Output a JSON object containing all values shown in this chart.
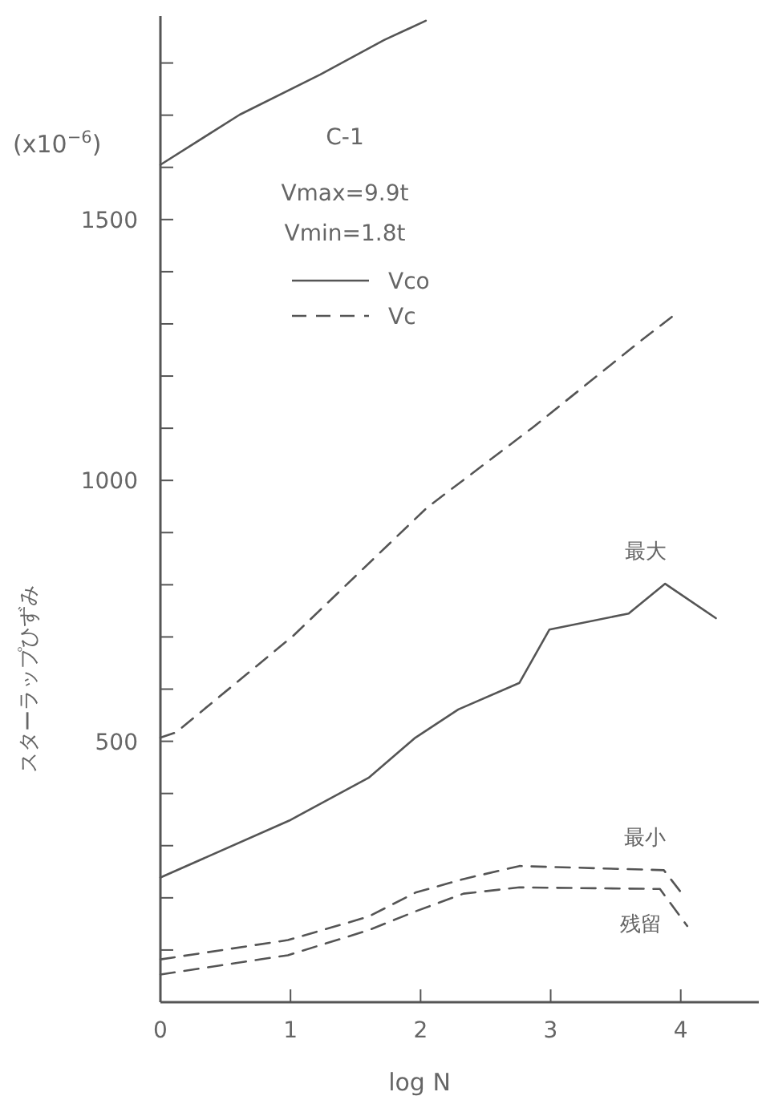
{
  "chart_data": {
    "type": "line",
    "xlabel": "log N",
    "ylabel": "スターラップひずみ",
    "annotations": [
      "(x10$^{−6}$)",
      "C-1",
      "Vmax=9.9t",
      "Vmin=1.8t"
    ],
    "xlim": [
      0,
      4.6
    ],
    "ylim": [
      0,
      1890
    ],
    "xticks": [
      0,
      1,
      2,
      3,
      4
    ],
    "yticks": [
      {
        "value": 100,
        "label": null
      },
      {
        "value": 200,
        "label": null
      },
      {
        "value": 300,
        "label": null
      },
      {
        "value": 400,
        "label": null
      },
      500,
      {
        "value": 600,
        "label": null
      },
      {
        "value": 700,
        "label": null
      },
      {
        "value": 800,
        "label": null
      },
      {
        "value": 900,
        "label": null
      },
      1000,
      {
        "value": 1100,
        "label": null
      },
      {
        "value": 1200,
        "label": null
      },
      {
        "value": 1300,
        "label": null
      },
      {
        "value": 1400,
        "label": null
      },
      1500,
      {
        "value": 1600,
        "label": null
      },
      {
        "value": 1700,
        "label": null
      },
      {
        "value": 1800,
        "label": null
      }
    ],
    "legend": "top left",
    "marker": "none",
    "series": [
      {
        "name": "Vco",
        "color": "#555555",
        "line_style": "solid",
        "x": [
          0,
          0.61,
          1.23,
          1.72,
          2.04
        ],
        "values": [
          1605,
          1701,
          1778,
          1844,
          1881
        ]
      },
      {
        "name": "Vc",
        "color": "#555555",
        "line_style": "dashed",
        "x": [
          0,
          0.12,
          1.02,
          2.05,
          2.86,
          3.68,
          3.95
        ],
        "values": [
          507,
          517,
          702,
          948,
          1101,
          1265,
          1317
        ]
      },
      {
        "name": "最大",
        "color": "#555555",
        "line_style": "solid",
        "x": [
          0,
          0.99,
          1.6,
          1.96,
          2.29,
          2.76,
          2.99,
          3.6,
          3.88,
          4.27
        ],
        "values": [
          239,
          348,
          430,
          507,
          561,
          612,
          714,
          745,
          802,
          736
        ]
      },
      {
        "name": "最小",
        "color": "#555555",
        "line_style": "dashed",
        "x": [
          0,
          0.98,
          1.6,
          1.96,
          2.33,
          2.76,
          3.87,
          4.01
        ],
        "values": [
          82,
          119,
          164,
          210,
          236,
          261,
          253,
          208
        ]
      },
      {
        "name": "残留",
        "color": "#555555",
        "line_style": "dashed",
        "x": [
          0,
          0.98,
          1.6,
          1.96,
          2.33,
          2.76,
          3.84,
          4.05
        ],
        "values": [
          53,
          90,
          138,
          174,
          208,
          220,
          217,
          146
        ]
      }
    ]
  }
}
